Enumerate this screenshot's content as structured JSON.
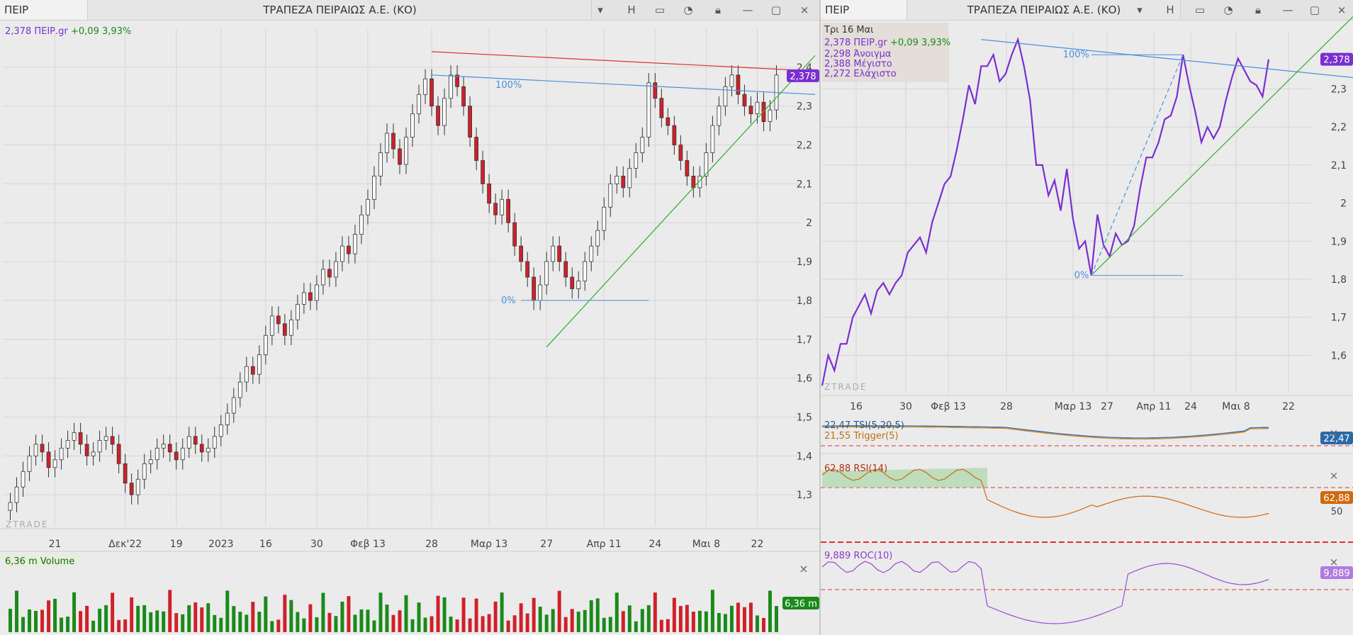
{
  "left": {
    "symbol": "ΠΕΙΡ",
    "title": "ΤΡΑΠΕΖΑ ΠΕΙΡΑΙΩΣ Α.Ε. (ΚΟ)",
    "toolbar": {
      "h_label": "H"
    },
    "info_line": {
      "price_label": "2,378 ΠΕΙΡ.gr",
      "change": "+0,09 3,93%"
    },
    "price_badge": "2,378",
    "fib_100": "100%",
    "fib_0": "0%",
    "watermark": "ZTRADE",
    "volume_label": "6,36 m Volume",
    "volume_badge": "6,36 m",
    "close_symbol": "×"
  },
  "right": {
    "symbol": "ΠΕΙΡ",
    "title": "ΤΡΑΠΕΖΑ ΠΕΙΡΑΙΩΣ Α.Ε. (ΚΟ)",
    "toolbar": {
      "h_label": "H"
    },
    "tooltip": {
      "date": "Τρι 16 Μαι",
      "price_line": "2,378 ΠΕΙΡ.gr",
      "change": "+0,09 3,93%",
      "open": "2,298 Άνοιγμα",
      "high": "2,388 Μέγιστο",
      "low": "2,272 Ελάχιστο"
    },
    "price_badge": "2,378",
    "fib_100": "100%",
    "fib_0": "0%",
    "watermark": "ZTRADE",
    "tsi": {
      "label": "22,47 TSI(5,20,5)",
      "trigger": "21,55 Trigger(5)",
      "badge": "22,47"
    },
    "rsi": {
      "label": "62,88 RSI(14)",
      "badge": "62,88",
      "level": "50"
    },
    "roc": {
      "label": "9,889 ROC(10)",
      "badge": "9,889"
    },
    "close_symbol": "×"
  },
  "colors": {
    "up_candle": "#ffffff",
    "down_candle": "#d0202a",
    "trend_green": "#2fae2f",
    "fib_blue": "#4a90d9",
    "resistance_red": "#e03030",
    "line_purple": "#7a2fd0",
    "volume_green": "#1a8a1a",
    "volume_red": "#d0202a"
  },
  "chart_data": [
    {
      "type": "candlestick",
      "title": "ΤΡΑΠΕΖΑ ΠΕΙΡΑΙΩΣ Α.Ε. (ΚΟ)",
      "y_ticks": [
        "2,4",
        "2,3",
        "2,2",
        "2,1",
        "2",
        "1,9",
        "1,8",
        "1,7",
        "1,6",
        "1,5",
        "1,4",
        "1,3"
      ],
      "x_ticks": [
        "21",
        "Δεκ'22",
        "19",
        "2023",
        "16",
        "30",
        "Φεβ 13",
        "28",
        "Μαρ 13",
        "27",
        "Απρ 11",
        "24",
        "Μαι 8",
        "22"
      ],
      "ylim": [
        1.22,
        2.5
      ],
      "closes": [
        1.28,
        1.32,
        1.36,
        1.4,
        1.43,
        1.41,
        1.37,
        1.39,
        1.42,
        1.44,
        1.46,
        1.43,
        1.4,
        1.41,
        1.44,
        1.45,
        1.43,
        1.38,
        1.33,
        1.3,
        1.34,
        1.38,
        1.39,
        1.42,
        1.43,
        1.41,
        1.39,
        1.42,
        1.45,
        1.43,
        1.41,
        1.42,
        1.45,
        1.48,
        1.51,
        1.55,
        1.59,
        1.63,
        1.61,
        1.66,
        1.71,
        1.76,
        1.74,
        1.71,
        1.75,
        1.79,
        1.82,
        1.8,
        1.84,
        1.88,
        1.86,
        1.9,
        1.94,
        1.92,
        1.97,
        2.02,
        2.06,
        2.12,
        2.18,
        2.23,
        2.19,
        2.15,
        2.22,
        2.28,
        2.33,
        2.37,
        2.3,
        2.25,
        2.32,
        2.38,
        2.35,
        2.3,
        2.22,
        2.16,
        2.1,
        2.05,
        2.02,
        2.06,
        2.0,
        1.94,
        1.9,
        1.86,
        1.8,
        1.84,
        1.9,
        1.94,
        1.9,
        1.86,
        1.83,
        1.85,
        1.9,
        1.94,
        1.98,
        2.04,
        2.1,
        2.12,
        2.09,
        2.14,
        2.18,
        2.22,
        2.36,
        2.32,
        2.27,
        2.25,
        2.2,
        2.16,
        2.12,
        2.09,
        2.12,
        2.18,
        2.25,
        2.3,
        2.35,
        2.38,
        2.33,
        2.3,
        2.28,
        2.31,
        2.26,
        2.29,
        2.38
      ],
      "volume_label": "6,36 m Volume"
    },
    {
      "type": "line",
      "title": "ΤΡΑΠΕΖΑ ΠΕΙΡΑΙΩΣ Α.Ε. (ΚΟ)",
      "y_ticks": [
        "2,3",
        "2,2",
        "2,1",
        "2",
        "1,9",
        "1,8",
        "1,7",
        "1,6"
      ],
      "x_ticks": [
        "16",
        "30",
        "Φεβ 13",
        "28",
        "Μαρ 13",
        "27",
        "Απρ 11",
        "24",
        "Μαι 8",
        "22"
      ],
      "ylim": [
        1.5,
        2.45
      ],
      "values": [
        1.52,
        1.6,
        1.56,
        1.63,
        1.63,
        1.7,
        1.73,
        1.76,
        1.71,
        1.77,
        1.79,
        1.76,
        1.79,
        1.81,
        1.87,
        1.89,
        1.91,
        1.87,
        1.95,
        2.0,
        2.05,
        2.07,
        2.14,
        2.22,
        2.31,
        2.26,
        2.36,
        2.36,
        2.39,
        2.32,
        2.34,
        2.39,
        2.43,
        2.36,
        2.27,
        2.1,
        2.1,
        2.02,
        2.06,
        1.98,
        2.09,
        1.96,
        1.88,
        1.9,
        1.81,
        1.97,
        1.89,
        1.86,
        1.92,
        1.89,
        1.9,
        1.94,
        2.04,
        2.12,
        2.12,
        2.16,
        2.22,
        2.23,
        2.28,
        2.39,
        2.31,
        2.24,
        2.16,
        2.2,
        2.17,
        2.2,
        2.27,
        2.33,
        2.38,
        2.35,
        2.32,
        2.31,
        2.28,
        2.378
      ],
      "indicators": [
        {
          "name": "TSI(5,20,5)",
          "value": "22,47"
        },
        {
          "name": "Trigger(5)",
          "value": "21,55"
        },
        {
          "name": "RSI(14)",
          "value": "62,88"
        },
        {
          "name": "ROC(10)",
          "value": "9,889"
        }
      ]
    }
  ]
}
